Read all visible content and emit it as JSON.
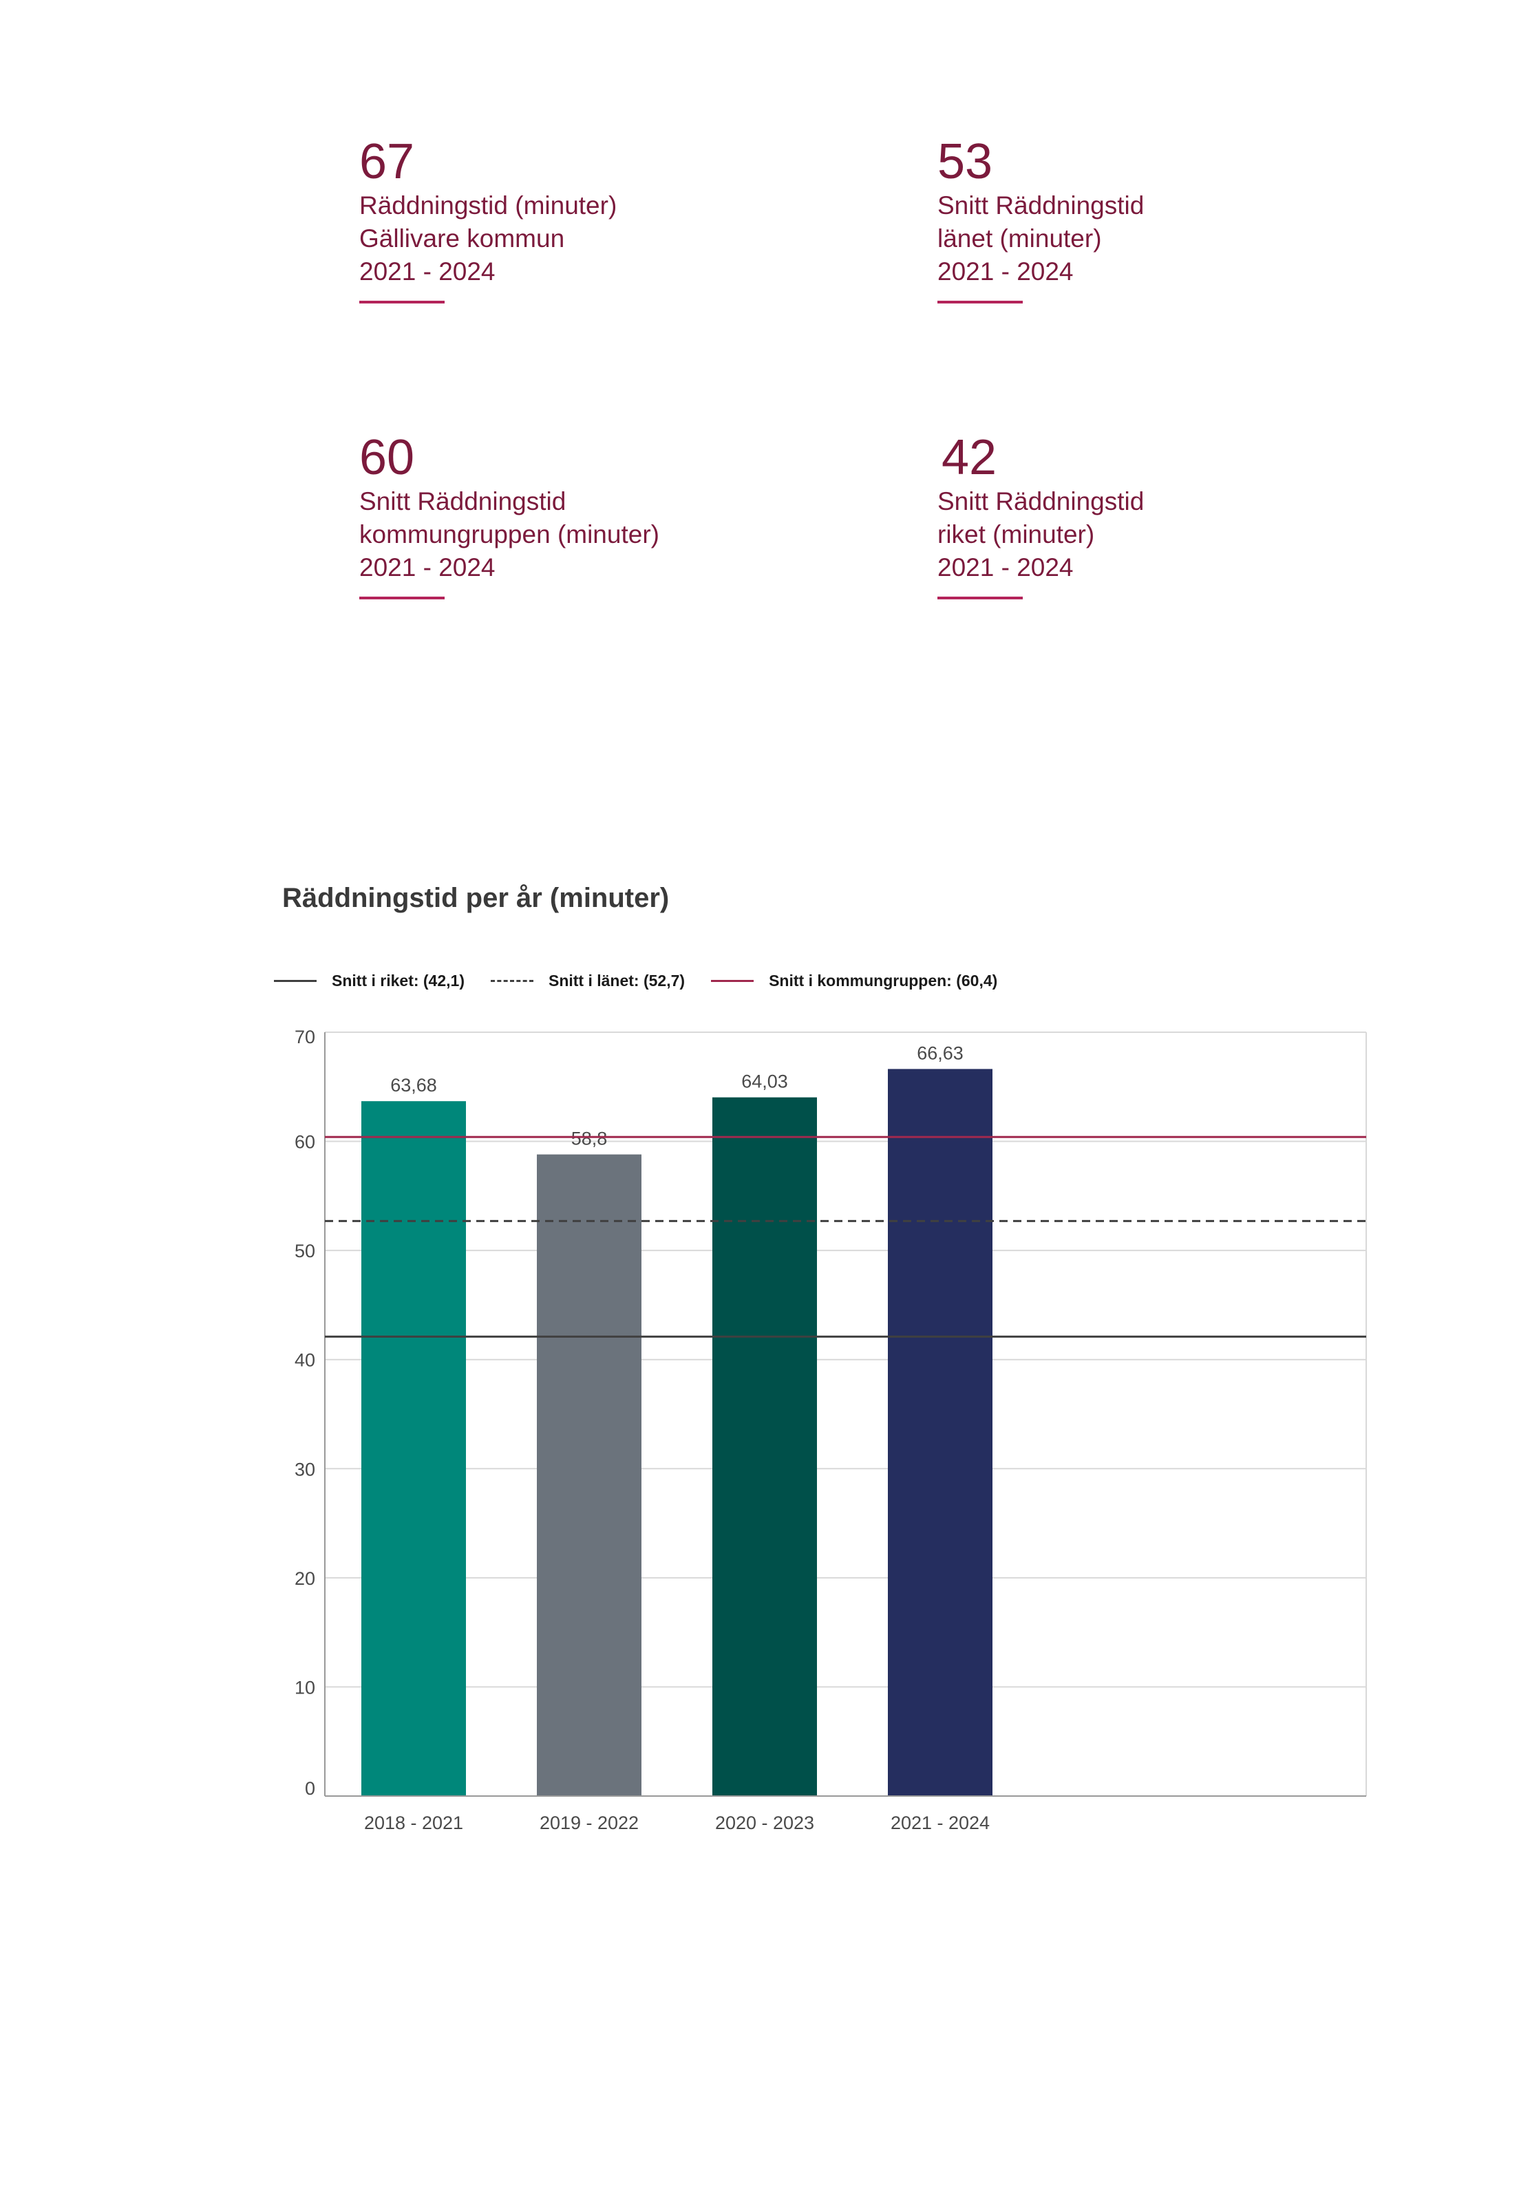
{
  "stats": [
    {
      "value": "67",
      "lines": [
        "Räddningstid (minuter)",
        "Gällivare kommun",
        "2021 - 2024"
      ]
    },
    {
      "value": "53",
      "lines": [
        "Snitt Räddningstid",
        "länet (minuter)",
        "2021 - 2024"
      ]
    },
    {
      "value": "60",
      "lines": [
        "Snitt Räddningstid",
        "kommungruppen (minuter)",
        "2021 - 2024"
      ]
    },
    {
      "value": "42",
      "lines": [
        "Snitt Räddningstid",
        "riket (minuter)",
        "2021 - 2024"
      ]
    }
  ],
  "colors": {
    "accent": "#7b1a3c",
    "rule": "#b4245a",
    "riket_line": "#404040",
    "lanet_line": "#404040",
    "kommungrupp_line": "#a0294e",
    "grid": "#d9d9d9",
    "axis": "#999999",
    "label": "#4a4a4a"
  },
  "legend": [
    {
      "label": "Snitt i riket: (42,1)",
      "style": "solid",
      "color": "#404040"
    },
    {
      "label": "Snitt i länet: (52,7)",
      "style": "dashed",
      "color": "#404040"
    },
    {
      "label": "Snitt i kommungruppen: (60,4)",
      "style": "solid",
      "color": "#a0294e"
    }
  ],
  "chart_data": {
    "type": "bar",
    "title": "Räddningstid per år (minuter)",
    "categories": [
      "2018 - 2021",
      "2019 - 2022",
      "2020 - 2023",
      "2021 - 2024"
    ],
    "values": [
      63.68,
      58.8,
      64.03,
      66.63
    ],
    "value_labels": [
      "63,68",
      "58,8",
      "64,03",
      "66,63"
    ],
    "bar_colors": [
      "#00877a",
      "#6b737c",
      "#00504a",
      "#252e5f"
    ],
    "ylim": [
      0,
      70
    ],
    "yticks": [
      0,
      10,
      20,
      30,
      40,
      50,
      60,
      70
    ],
    "reference_lines": [
      {
        "name": "Snitt i riket",
        "value": 42.1,
        "style": "solid",
        "color": "#404040"
      },
      {
        "name": "Snitt i länet",
        "value": 52.7,
        "style": "dashed",
        "color": "#404040"
      },
      {
        "name": "Snitt i kommungruppen",
        "value": 60.4,
        "style": "solid",
        "color": "#a0294e"
      }
    ],
    "xlabel": "",
    "ylabel": "",
    "grid": true
  }
}
